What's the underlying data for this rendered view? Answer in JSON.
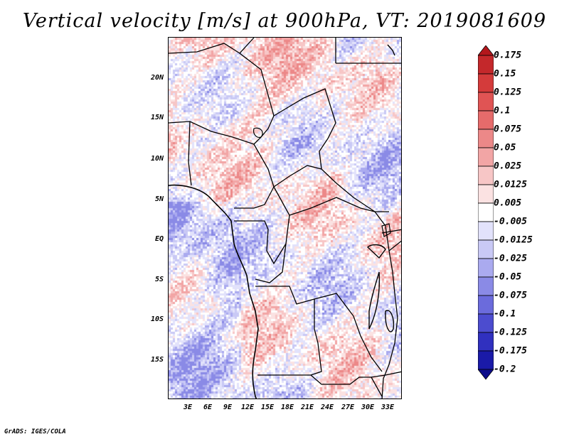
{
  "title": "Vertical velocity [m/s] at 900hPa, VT: 2019081609",
  "footer": "GrADS: IGES/COLA",
  "map": {
    "variable": "vertical velocity",
    "units": "m/s",
    "level": "900hPa",
    "valid_time": "2019081609",
    "lat_labels": [
      "20N",
      "15N",
      "10N",
      "5N",
      "EQ",
      "5S",
      "10S",
      "15S"
    ],
    "lon_labels": [
      "3E",
      "6E",
      "9E",
      "12E",
      "15E",
      "18E",
      "21E",
      "24E",
      "27E",
      "30E",
      "33E"
    ]
  },
  "colorbar": {
    "labels": [
      "0.175",
      "0.15",
      "0.125",
      "0.1",
      "0.075",
      "0.05",
      "0.025",
      "0.0125",
      "0.005",
      "-0.005",
      "-0.0125",
      "-0.025",
      "-0.05",
      "-0.075",
      "-0.1",
      "-0.125",
      "-0.175",
      "-0.2"
    ],
    "colors": [
      "#b3171c",
      "#c4282b",
      "#d43b3b",
      "#e05454",
      "#e66b6b",
      "#ec8888",
      "#f2a5a5",
      "#f7c6c6",
      "#fbe2e2",
      "#ffffff",
      "#e2e2fb",
      "#c9c9f5",
      "#aaaaef",
      "#8a8ae6",
      "#6b6bdc",
      "#4c4ccf",
      "#3030bf",
      "#1a1aa8",
      "#0c0c8a"
    ]
  }
}
